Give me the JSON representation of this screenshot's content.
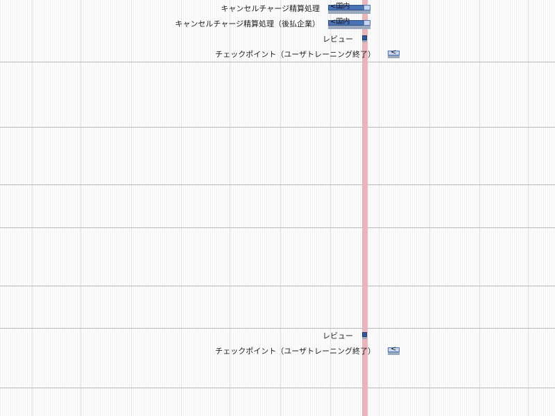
{
  "gantt": {
    "tasks_top": [
      {
        "label": "キャンセルチャージ精算処理",
        "bar_text": "<国内"
      },
      {
        "label": "キャンセルチャージ精算処理（後払企業）",
        "bar_text": "<国内"
      },
      {
        "label": "レビュー"
      },
      {
        "label": "チェックポイント（ユーザトレーニング終了）",
        "bar_text": "<"
      }
    ],
    "tasks_bottom": [
      {
        "label": "レビュー"
      },
      {
        "label": "チェックポイント（ユーザトレーニング終了）",
        "bar_text": "<"
      }
    ],
    "colors": {
      "bar_fill": "#4a73b5",
      "bar_remaining": "#c9d6ee",
      "bar_shadow": "#9aa8be",
      "milestone": "#2f5aa0",
      "today_line": "#eab4b9",
      "row_separator": "#b8b8b8"
    }
  }
}
